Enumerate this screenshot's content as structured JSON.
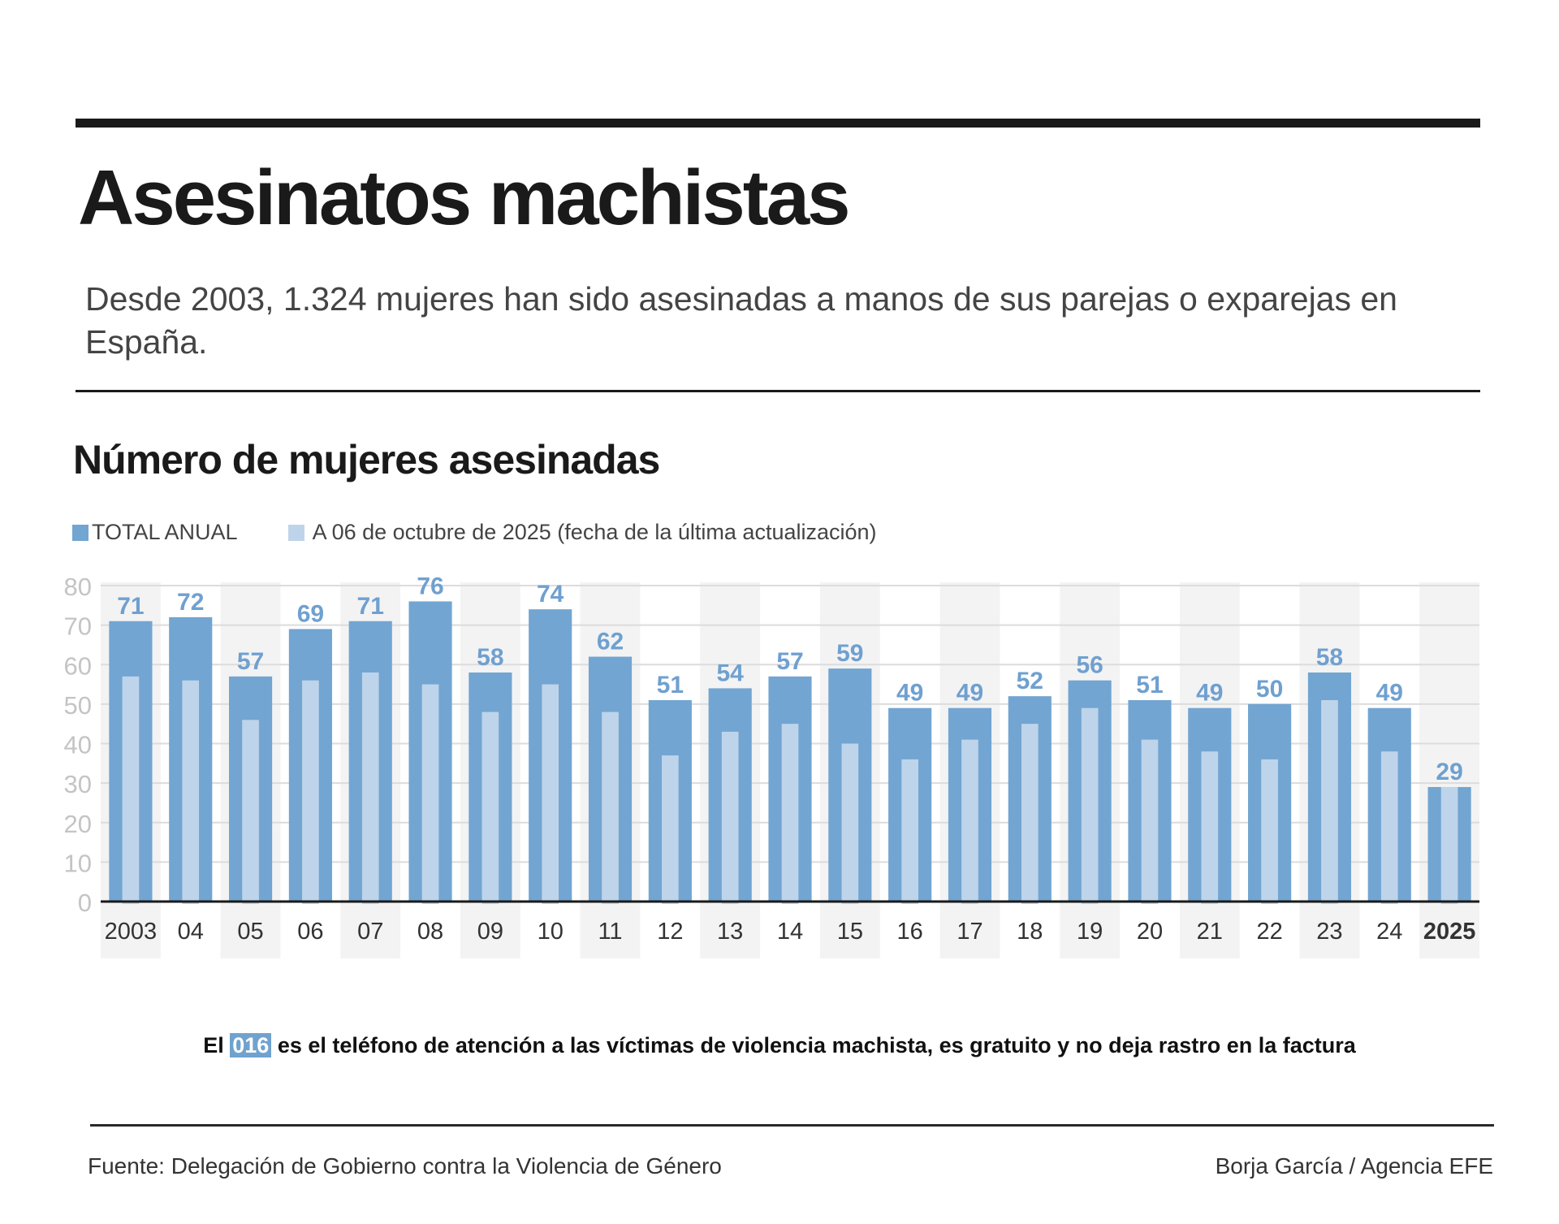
{
  "header": {
    "title": "Asesinatos machistas",
    "subtitle": "Desde 2003, 1.324 mujeres han sido asesinadas a manos de sus parejas o exparejas en España."
  },
  "colors": {
    "total": "#72a5d2",
    "partial": "#bed4ea",
    "label": "#6fa0d0",
    "band": "#f3f3f3",
    "grid": "#dcdcdc",
    "axis_label": "#c4c4c4"
  },
  "note": {
    "prefix": "El",
    "highlight": "016",
    "suffix": "es el teléfono de atención a las víctimas de violencia machista, es gratuito y no deja rastro en la factura"
  },
  "footer": {
    "source": "Fuente: Delegación de Gobierno contra la Violencia de Género",
    "credit": "Borja García / Agencia EFE"
  },
  "chart_data": {
    "type": "bar",
    "title": "Número de mujeres asesinadas",
    "xlabel": "",
    "ylabel": "",
    "ylim": [
      0,
      80
    ],
    "yticks": [
      0,
      10,
      20,
      30,
      40,
      50,
      60,
      70,
      80
    ],
    "grid": true,
    "legend_position": "top-left",
    "categories": [
      "2003",
      "04",
      "05",
      "06",
      "07",
      "08",
      "09",
      "10",
      "11",
      "12",
      "13",
      "14",
      "15",
      "16",
      "17",
      "18",
      "19",
      "20",
      "21",
      "22",
      "23",
      "24",
      "2025"
    ],
    "bold_categories": [
      "2025"
    ],
    "series": [
      {
        "name": "TOTAL ANUAL",
        "values": [
          71,
          72,
          57,
          69,
          71,
          76,
          58,
          74,
          62,
          51,
          54,
          57,
          59,
          49,
          49,
          52,
          56,
          51,
          49,
          50,
          58,
          49,
          29
        ],
        "labeled": true
      },
      {
        "name": "A 06 de octubre de 2025 (fecha de la última actualización)",
        "values": [
          57,
          56,
          46,
          56,
          58,
          55,
          48,
          55,
          48,
          37,
          43,
          45,
          40,
          36,
          41,
          45,
          49,
          41,
          38,
          36,
          51,
          38,
          29
        ],
        "labeled": false
      }
    ]
  }
}
